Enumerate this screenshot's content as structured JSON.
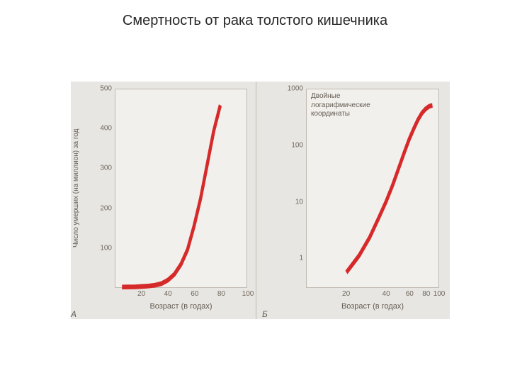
{
  "title": "Смертность от рака толстого кишечника",
  "colors": {
    "page_bg": "#ffffff",
    "figure_bg": "#e8e6e2",
    "plot_bg": "#f2f0ec",
    "border": "#bfb9b0",
    "line": "#d62a2a",
    "tick_text": "#6e665c",
    "label_text": "#635c52"
  },
  "typography": {
    "title_fontsize": 20,
    "tick_fontsize": 10,
    "label_fontsize": 11,
    "annotation_fontsize": 10
  },
  "panelA": {
    "type": "line",
    "letter": "А",
    "xlabel": "Возраст (в годах)",
    "ylabel": "Число умерших (на миллион) за год",
    "xscale": "linear",
    "yscale": "linear",
    "xlim": [
      0,
      100
    ],
    "ylim": [
      0,
      500
    ],
    "xticks": [
      20,
      40,
      60,
      80,
      100
    ],
    "yticks": [
      100,
      200,
      300,
      400,
      500
    ],
    "line_width": 2.4,
    "series": {
      "x": [
        5,
        10,
        15,
        20,
        25,
        30,
        35,
        40,
        45,
        50,
        55,
        60,
        65,
        70,
        75,
        80
      ],
      "y": [
        0.6,
        0.8,
        1,
        2,
        3,
        5,
        9,
        18,
        33,
        58,
        95,
        155,
        225,
        310,
        395,
        460
      ]
    }
  },
  "panelB": {
    "type": "line",
    "letter": "Б",
    "xlabel": "Возраст (в годах)",
    "ylabel": "",
    "annotation": "Двойные\nлогарифмические\nкоординаты",
    "xscale": "log",
    "yscale": "log",
    "xlim": [
      10,
      100
    ],
    "ylim": [
      0.3,
      1000
    ],
    "xticks": [
      20,
      40,
      60,
      80,
      100
    ],
    "yticks": [
      1,
      10,
      100,
      1000
    ],
    "line_width": 2.4,
    "series": {
      "x": [
        20,
        25,
        30,
        35,
        40,
        45,
        50,
        55,
        60,
        65,
        70,
        75,
        80,
        85,
        90
      ],
      "y": [
        0.55,
        1.1,
        2.3,
        5,
        10,
        20,
        40,
        75,
        130,
        200,
        290,
        380,
        450,
        500,
        520
      ]
    }
  }
}
